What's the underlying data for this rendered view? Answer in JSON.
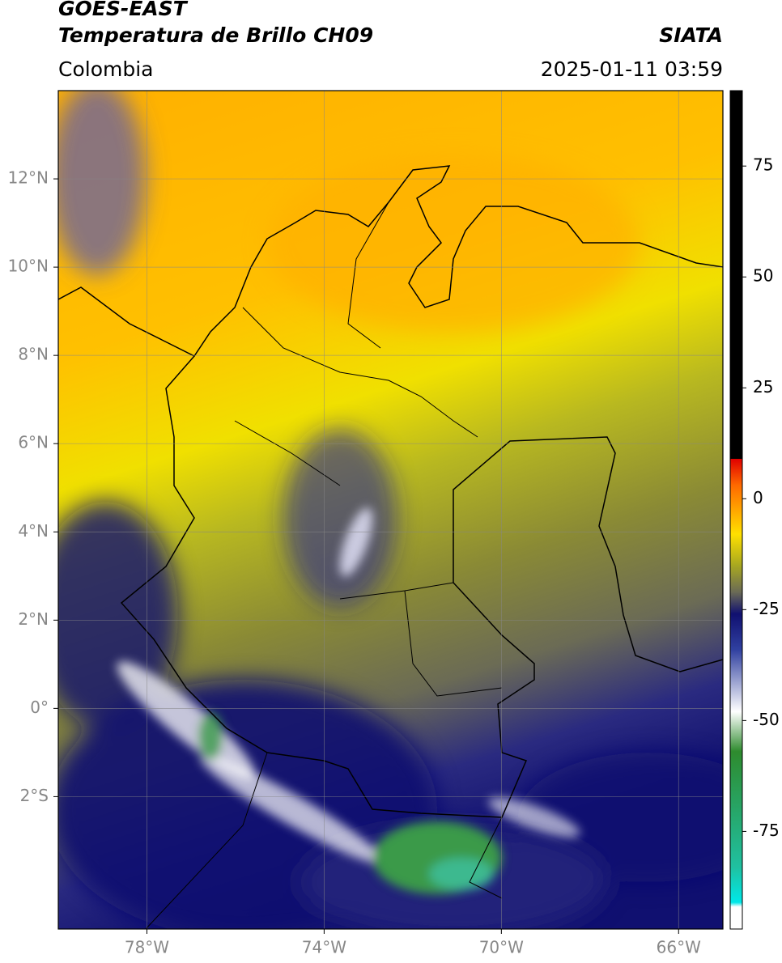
{
  "map": {
    "title": "GOES-EAST",
    "subtitle": "Temperatura de Brillo CH09",
    "source": "SIATA",
    "region": "Colombia",
    "datetime": "2025-01-11 03:59",
    "xlim": [
      -80,
      -65
    ],
    "ylim": [
      -5,
      14
    ],
    "xticks": [
      {
        "value": -78,
        "label": "78°W"
      },
      {
        "value": -74,
        "label": "74°W"
      },
      {
        "value": -70,
        "label": "70°W"
      },
      {
        "value": -66,
        "label": "66°W"
      }
    ],
    "yticks": [
      {
        "value": 12,
        "label": "12°N"
      },
      {
        "value": 10,
        "label": "10°N"
      },
      {
        "value": 8,
        "label": "8°N"
      },
      {
        "value": 6,
        "label": "6°N"
      },
      {
        "value": 4,
        "label": "4°N"
      },
      {
        "value": 2,
        "label": "2°N"
      },
      {
        "value": 0,
        "label": "0°"
      },
      {
        "value": -2,
        "label": "2°S"
      }
    ],
    "grid": true,
    "colorbar": {
      "lim": [
        -97,
        92
      ],
      "ticks": [
        75,
        50,
        25,
        0,
        -25,
        -50,
        -75
      ],
      "stops": [
        {
          "value": 92,
          "color": "#000000"
        },
        {
          "value": 9,
          "color": "#000000"
        },
        {
          "value": 9,
          "color": "#e00000"
        },
        {
          "value": 3,
          "color": "#ff6a00"
        },
        {
          "value": -8,
          "color": "#ffe000"
        },
        {
          "value": -15,
          "color": "#a8a820"
        },
        {
          "value": -21,
          "color": "#6b6b55"
        },
        {
          "value": -26,
          "color": "#101070"
        },
        {
          "value": -34,
          "color": "#3040a0"
        },
        {
          "value": -48,
          "color": "#ffffff"
        },
        {
          "value": -57,
          "color": "#2e8b2e"
        },
        {
          "value": -83,
          "color": "#20c0a0"
        },
        {
          "value": -91,
          "color": "#00e8e8"
        },
        {
          "value": -92,
          "color": "#ffffff"
        },
        {
          "value": -97,
          "color": "#ffffff"
        }
      ]
    }
  }
}
